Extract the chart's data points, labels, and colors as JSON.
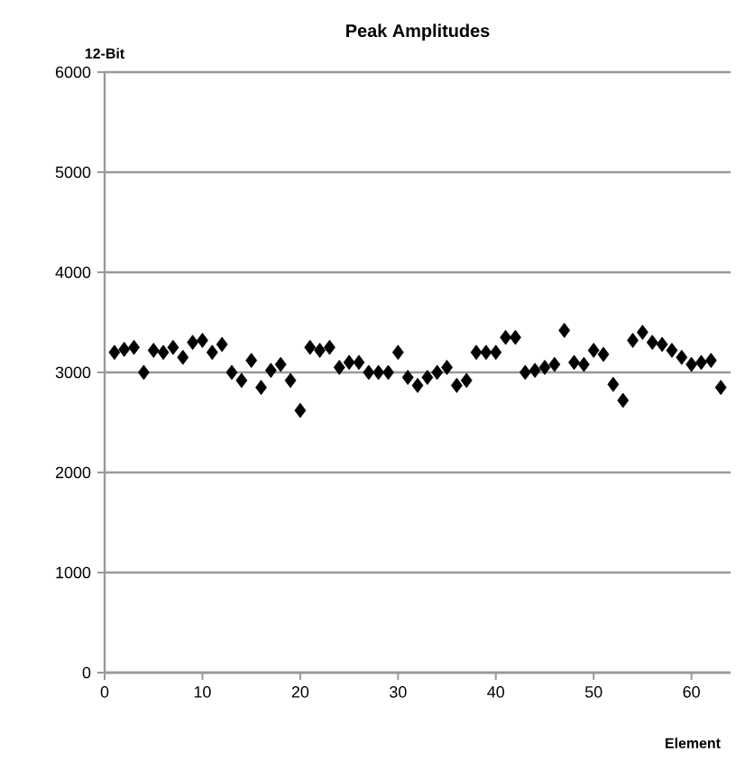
{
  "chart_data": {
    "type": "scatter",
    "title": "Peak Amplitudes",
    "xlabel": "Element",
    "ylabel": "12-Bit",
    "x": [
      1,
      2,
      3,
      4,
      5,
      6,
      7,
      8,
      9,
      10,
      11,
      12,
      13,
      14,
      15,
      16,
      17,
      18,
      19,
      20,
      21,
      22,
      23,
      24,
      25,
      26,
      27,
      28,
      29,
      30,
      31,
      32,
      33,
      34,
      35,
      36,
      37,
      38,
      39,
      40,
      41,
      42,
      43,
      44,
      45,
      46,
      47,
      48,
      49,
      50,
      51,
      52,
      53,
      54,
      55,
      56,
      57,
      58,
      59,
      60,
      61,
      62,
      63
    ],
    "values": [
      3200,
      3230,
      3250,
      3000,
      3220,
      3200,
      3250,
      3150,
      3300,
      3320,
      3200,
      3280,
      3000,
      2920,
      3120,
      2850,
      3020,
      3080,
      2920,
      2620,
      3250,
      3220,
      3250,
      3050,
      3100,
      3100,
      3000,
      3000,
      3000,
      3200,
      2950,
      2870,
      2950,
      3000,
      3050,
      2870,
      2920,
      3200,
      3200,
      3200,
      3350,
      3350,
      3000,
      3020,
      3050,
      3080,
      3420,
      3100,
      3080,
      3220,
      3180,
      2880,
      2720,
      3320,
      3400,
      3300,
      3280,
      3220,
      3150,
      3080,
      3100,
      3120,
      2850
    ],
    "color": "#000000",
    "marker": "diamond",
    "xlim": [
      0,
      64
    ],
    "ylim": [
      0,
      6000
    ],
    "xticks": [
      0,
      10,
      20,
      30,
      40,
      50,
      60
    ],
    "yticks": [
      0,
      1000,
      2000,
      3000,
      4000,
      5000,
      6000
    ],
    "grid": "y"
  }
}
